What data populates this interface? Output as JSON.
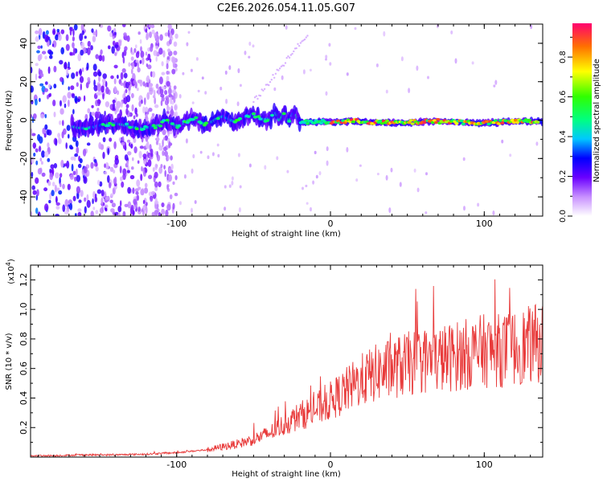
{
  "chart_data": [
    {
      "type": "heatmap",
      "title": "C2E6.2026.054.11.05.G07",
      "xlabel": "Height of straight line (km)",
      "ylabel": "Frequency (Hz)",
      "xlim": [
        -195,
        138
      ],
      "ylim": [
        -50,
        50
      ],
      "x_ticks": [
        "-100",
        "0",
        "100"
      ],
      "y_ticks": [
        "40",
        "20",
        "0",
        "-20",
        "-40"
      ],
      "colorbar": {
        "label": "Normalized spectral amplitude",
        "range": [
          0.0,
          0.97
        ],
        "ticks": [
          "0.0",
          "0.2",
          "0.4",
          "0.6",
          "0.8"
        ]
      },
      "description_series": [
        {
          "name": "noise_region",
          "x_range": [
            -195,
            -105
          ],
          "freq_range": [
            -50,
            50
          ],
          "amplitude": "low-mid"
        },
        {
          "name": "signal_band",
          "x_range": [
            -165,
            138
          ],
          "freq_center": [
            -3,
            -2,
            -1,
            0,
            2,
            -1,
            -1,
            -1
          ],
          "amplitude_peak": 0.95
        }
      ]
    },
    {
      "type": "line",
      "xlabel": "Height of straight line (km)",
      "ylabel": "SNR (10 * v/v)",
      "multiplier": "(x10",
      "multiplier_exp": "4",
      "xlim": [
        -195,
        138
      ],
      "ylim": [
        0,
        1.3
      ],
      "x_ticks": [
        "-100",
        "0",
        "100"
      ],
      "y_ticks": [
        "0.2",
        "0.4",
        "0.6",
        "0.8",
        "1.0",
        "1.2"
      ],
      "series": [
        {
          "name": "SNR",
          "color": "#e83a3a",
          "x": [
            -195,
            -180,
            -160,
            -140,
            -120,
            -100,
            -90,
            -80,
            -70,
            -60,
            -50,
            -40,
            -30,
            -20,
            -10,
            0,
            10,
            20,
            30,
            40,
            50,
            60,
            70,
            80,
            90,
            100,
            110,
            120,
            130,
            138
          ],
          "y": [
            0.01,
            0.01,
            0.015,
            0.015,
            0.02,
            0.03,
            0.04,
            0.05,
            0.07,
            0.09,
            0.12,
            0.16,
            0.22,
            0.28,
            0.32,
            0.38,
            0.45,
            0.52,
            0.57,
            0.6,
            0.63,
            0.65,
            0.66,
            0.68,
            0.7,
            0.72,
            0.72,
            0.74,
            0.76,
            0.78
          ]
        }
      ]
    }
  ]
}
